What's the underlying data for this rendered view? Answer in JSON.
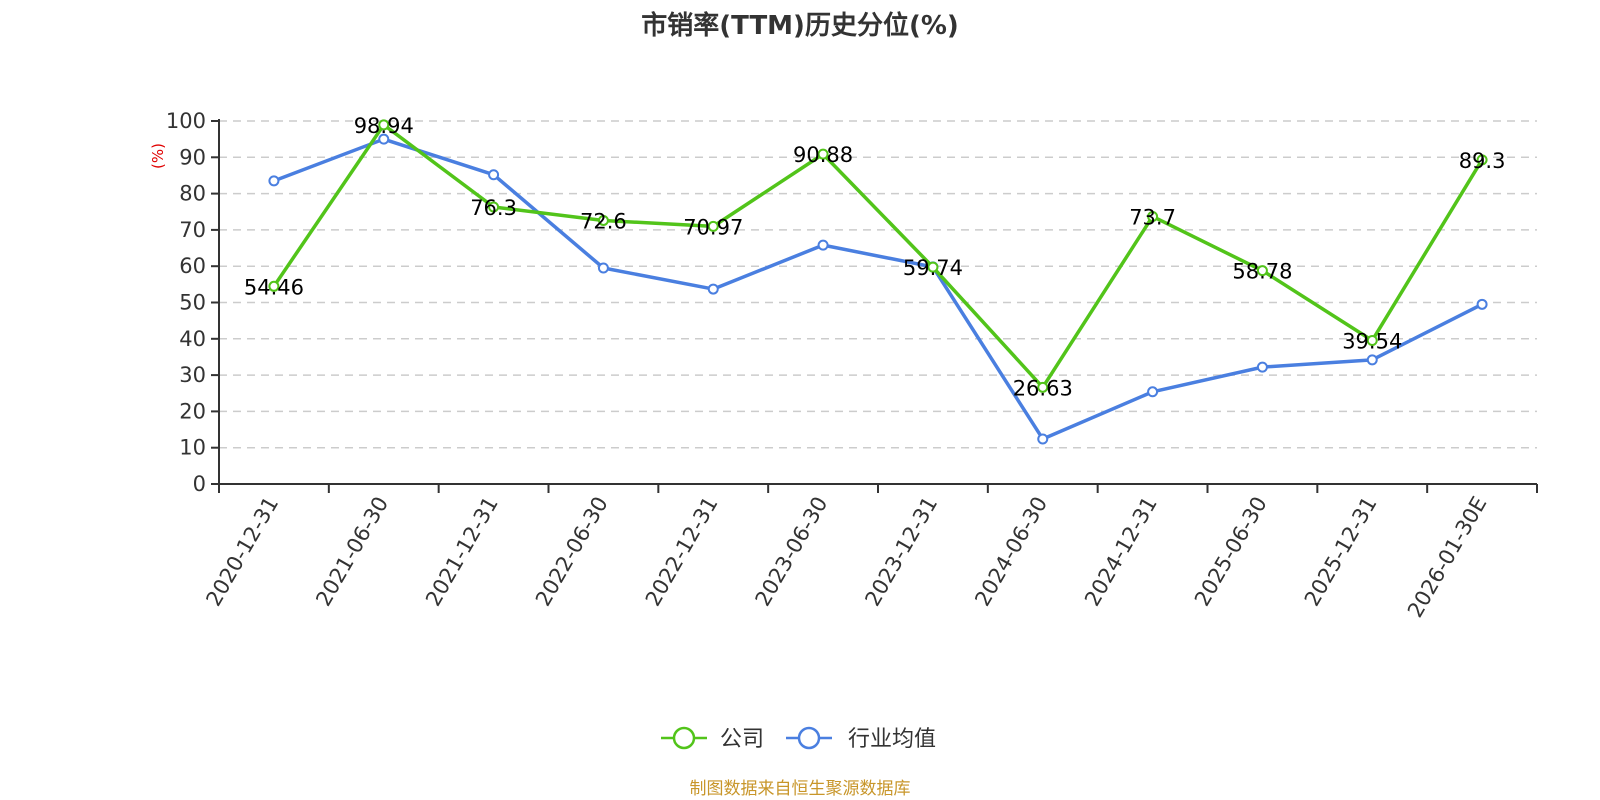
{
  "chart_data": {
    "type": "line",
    "title": "市销率(TTM)历史分位(%)",
    "xlabel": "",
    "ylabel": "(%)",
    "ylim": [
      0,
      100
    ],
    "yticks": [
      0,
      10,
      20,
      30,
      40,
      50,
      60,
      70,
      80,
      90,
      100
    ],
    "grid": true,
    "legend_position": "bottom",
    "categories": [
      "2020-12-31",
      "2021-06-30",
      "2021-12-31",
      "2022-06-30",
      "2022-12-31",
      "2023-06-30",
      "2023-12-31",
      "2024-06-30",
      "2024-12-31",
      "2025-06-30",
      "2025-12-31",
      "2026-01-30E"
    ],
    "series": [
      {
        "name": "公司",
        "color": "#52c41a",
        "values": [
          54.46,
          98.94,
          76.3,
          72.6,
          70.97,
          90.88,
          59.74,
          26.63,
          73.7,
          58.78,
          39.54,
          89.3
        ],
        "labels": [
          "54.46",
          "98.94",
          "76.3",
          "72.6",
          "70.97",
          "90.88",
          "59.74",
          "26.63",
          "73.7",
          "58.78",
          "39.54",
          "89.3"
        ],
        "show_labels": true
      },
      {
        "name": "行业均值",
        "color": "#4a7fe0",
        "values": [
          83.5,
          95.0,
          85.2,
          59.5,
          53.7,
          65.8,
          59.8,
          12.4,
          25.4,
          32.2,
          34.2,
          49.5
        ],
        "show_labels": false
      }
    ],
    "source": "制图数据来自恒生聚源数据库"
  }
}
